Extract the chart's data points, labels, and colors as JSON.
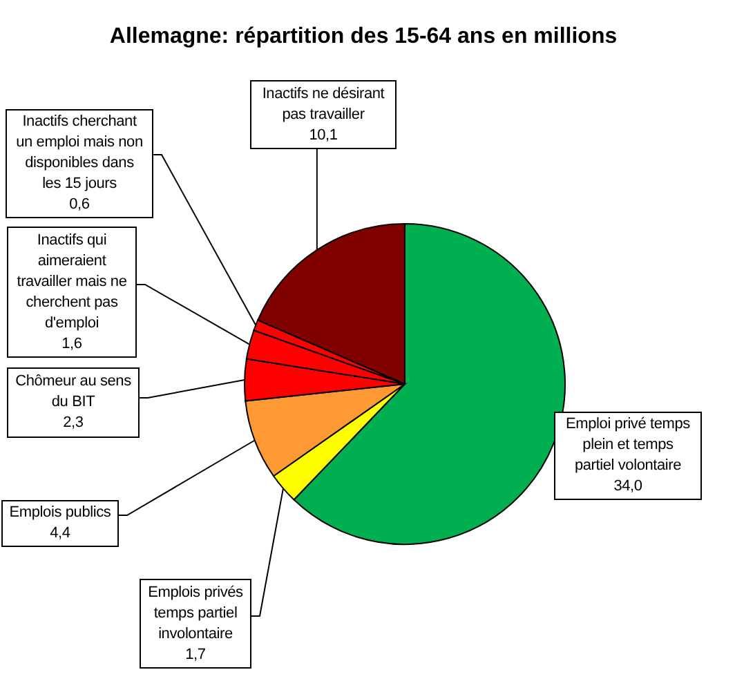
{
  "chart_data": {
    "type": "pie",
    "title": "Allemagne: répartition des 15-64 ans en millions",
    "categories": [
      "Emploi privé temps plein et temps partiel volontaire",
      "Emplois privés temps partiel involontaire",
      "Emplois publics",
      "Chômeur au sens du BIT",
      "Inactifs qui aimeraient travailler mais ne cherchent pas d'emploi",
      "Inactifs cherchant un emploi mais non disponibles dans les 15 jours",
      "Inactifs ne désirant pas travailler"
    ],
    "values": [
      34.0,
      1.7,
      4.4,
      2.3,
      1.6,
      0.6,
      10.1
    ],
    "colors": [
      "#00b050",
      "#ffff00",
      "#ff9933",
      "#ff0000",
      "#ff0000",
      "#ff0000",
      "#800000"
    ],
    "value_labels": [
      "34,0",
      "1,7",
      "4,4",
      "2,3",
      "1,6",
      "0,6",
      "10,1"
    ]
  }
}
